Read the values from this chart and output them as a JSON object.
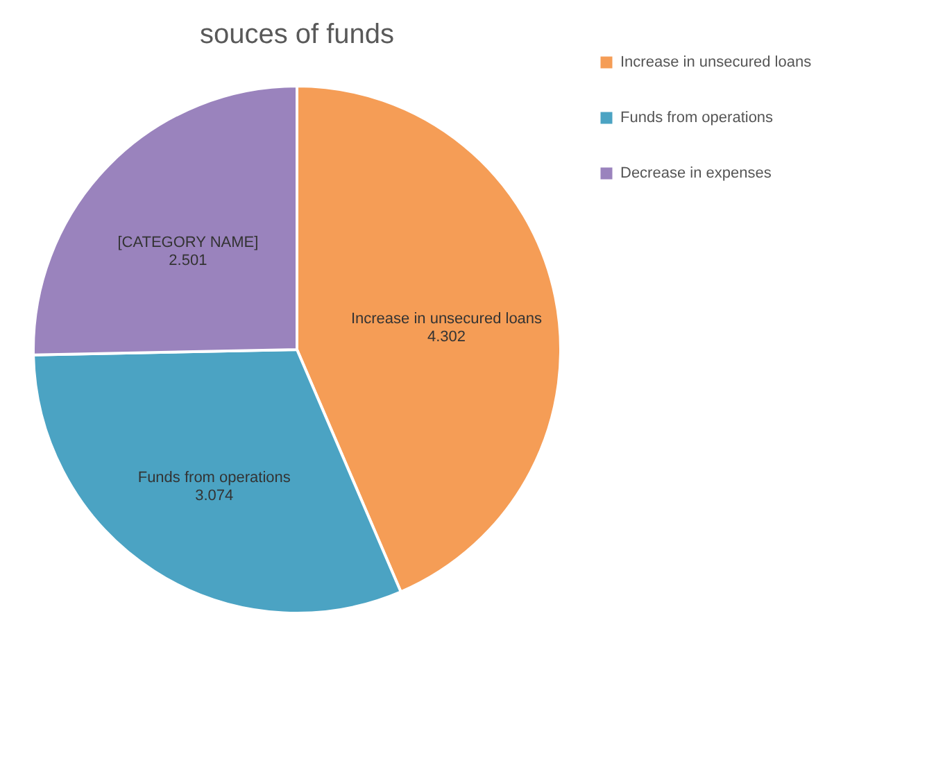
{
  "chart_data": {
    "type": "pie",
    "title": "souces of funds",
    "categories": [
      "Increase in unsecured loans",
      "Funds from operations",
      "Decrease in expenses"
    ],
    "values": [
      4.302,
      3.074,
      2.501
    ],
    "colors": [
      "#f59d56",
      "#4ba3c3",
      "#9a83bd"
    ],
    "data_labels": true,
    "legend": "right",
    "annotations": [
      {
        "text": "[CATEGORY NAME]",
        "x": "Decrease in expenses"
      }
    ]
  }
}
